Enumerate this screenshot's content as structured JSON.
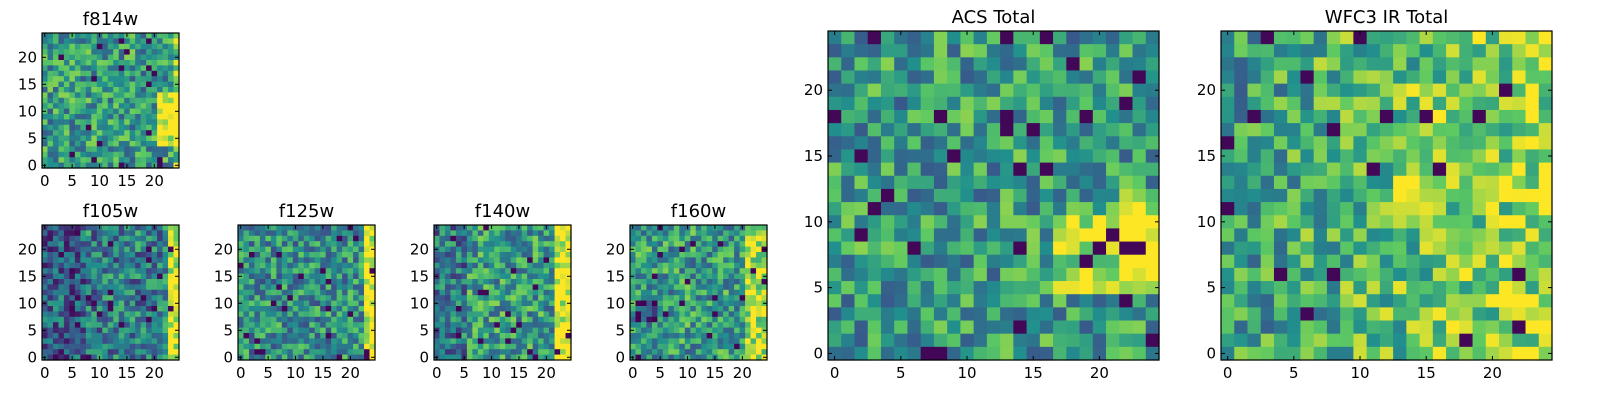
{
  "figure_title": "",
  "chart_data": [
    {
      "id": "f814w",
      "type": "heatmap",
      "title": "f814w",
      "grid_size": [
        25,
        25
      ],
      "seed": 11,
      "structure": "noisy field, bright patch toward right edge near y 5-12",
      "xlim": [
        0,
        25
      ],
      "ylim": [
        0,
        25
      ],
      "xticks": [
        0,
        5,
        10,
        15,
        20
      ],
      "yticks": [
        0,
        5,
        10,
        15,
        20
      ],
      "colormap": [
        "#440154",
        "#3b528b",
        "#21908d",
        "#5dc962",
        "#fde725"
      ]
    },
    {
      "id": "f105w",
      "type": "heatmap",
      "title": "f105w",
      "grid_size": [
        25,
        25
      ],
      "seed": 23,
      "structure": "darker left side, bright yellow column at right edge",
      "xlim": [
        0,
        25
      ],
      "ylim": [
        0,
        25
      ],
      "xticks": [
        0,
        5,
        10,
        15,
        20
      ],
      "yticks": [
        0,
        5,
        10,
        15,
        20
      ],
      "colormap": [
        "#440154",
        "#3b528b",
        "#21908d",
        "#5dc962",
        "#fde725"
      ]
    },
    {
      "id": "f125w",
      "type": "heatmap",
      "title": "f125w",
      "grid_size": [
        25,
        25
      ],
      "seed": 37,
      "structure": "mixed teal/green field, yellow right edge",
      "xlim": [
        0,
        25
      ],
      "ylim": [
        0,
        25
      ],
      "xticks": [
        0,
        5,
        10,
        15,
        20
      ],
      "yticks": [
        0,
        5,
        10,
        15,
        20
      ],
      "colormap": [
        "#440154",
        "#3b528b",
        "#21908d",
        "#5dc962",
        "#fde725"
      ]
    },
    {
      "id": "f140w",
      "type": "heatmap",
      "title": "f140w",
      "grid_size": [
        25,
        25
      ],
      "seed": 41,
      "structure": "mixed field, dark patches left, yellow right edge",
      "xlim": [
        0,
        25
      ],
      "ylim": [
        0,
        25
      ],
      "xticks": [
        0,
        5,
        10,
        15,
        20
      ],
      "yticks": [
        0,
        5,
        10,
        15,
        20
      ],
      "colormap": [
        "#440154",
        "#3b528b",
        "#21908d",
        "#5dc962",
        "#fde725"
      ]
    },
    {
      "id": "f160w",
      "type": "heatmap",
      "title": "f160w",
      "grid_size": [
        25,
        25
      ],
      "seed": 53,
      "structure": "green field, dark patch left-middle, yellow right edge",
      "xlim": [
        0,
        25
      ],
      "ylim": [
        0,
        25
      ],
      "xticks": [
        0,
        5,
        10,
        15,
        20
      ],
      "yticks": [
        0,
        5,
        10,
        15,
        20
      ],
      "colormap": [
        "#440154",
        "#3b528b",
        "#21908d",
        "#5dc962",
        "#fde725"
      ]
    },
    {
      "id": "acs_total",
      "type": "heatmap",
      "title": "ACS Total",
      "grid_size": [
        25,
        25
      ],
      "seed": 67,
      "structure": "green/teal field, bright yellow region lower right",
      "xlim": [
        0,
        25
      ],
      "ylim": [
        0,
        25
      ],
      "xticks": [
        0,
        5,
        10,
        15,
        20
      ],
      "yticks": [
        0,
        5,
        10,
        15,
        20
      ],
      "colormap": [
        "#440154",
        "#3b528b",
        "#21908d",
        "#5dc962",
        "#fde725"
      ]
    },
    {
      "id": "wfc3_ir_total",
      "type": "heatmap",
      "title": "WFC3 IR Total",
      "grid_size": [
        25,
        25
      ],
      "seed": 79,
      "structure": "green field, yellow toward right, scattered dark pixels",
      "xlim": [
        0,
        25
      ],
      "ylim": [
        0,
        25
      ],
      "xticks": [
        0,
        5,
        10,
        15,
        20
      ],
      "yticks": [
        0,
        5,
        10,
        15,
        20
      ],
      "colormap": [
        "#440154",
        "#3b528b",
        "#21908d",
        "#5dc962",
        "#fde725"
      ]
    }
  ]
}
